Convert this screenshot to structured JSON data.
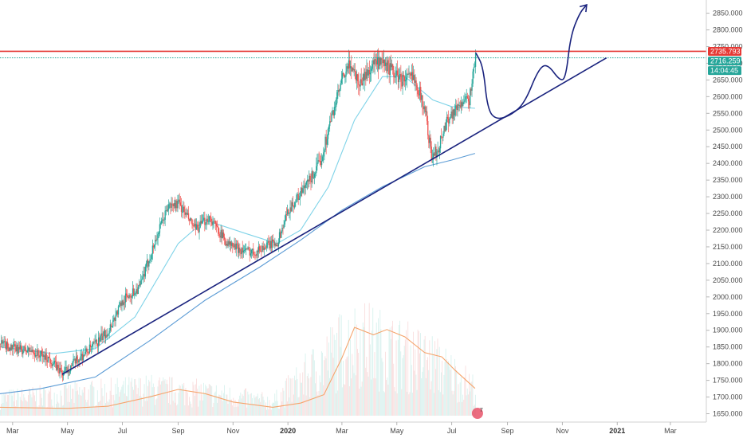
{
  "chart_data": {
    "type": "candlestick",
    "y_axis": {
      "position": "right",
      "range": [
        1625,
        2880
      ],
      "ticks": [
        "1650.000",
        "1700.000",
        "1750.000",
        "1800.000",
        "1850.000",
        "1900.000",
        "1950.000",
        "2000.000",
        "2050.000",
        "2100.000",
        "2150.000",
        "2200.000",
        "2250.000",
        "2300.000",
        "2350.000",
        "2400.000",
        "2450.000",
        "2500.000",
        "2550.000",
        "2600.000",
        "2650.000",
        "2700.000",
        "2750.000",
        "2800.000",
        "2850.000"
      ]
    },
    "x_axis": {
      "range": [
        "2019-02-15",
        "2021-04-10"
      ],
      "ticks": [
        {
          "date": "2019-03-01",
          "label": "Mar",
          "bold": false
        },
        {
          "date": "2019-05-01",
          "label": "May",
          "bold": false
        },
        {
          "date": "2019-07-01",
          "label": "Jul",
          "bold": false
        },
        {
          "date": "2019-09-01",
          "label": "Sep",
          "bold": false
        },
        {
          "date": "2019-11-01",
          "label": "Nov",
          "bold": false
        },
        {
          "date": "2020-01-01",
          "label": "2020",
          "bold": true
        },
        {
          "date": "2020-03-01",
          "label": "Mar",
          "bold": false
        },
        {
          "date": "2020-05-01",
          "label": "May",
          "bold": false
        },
        {
          "date": "2020-07-01",
          "label": "Jul",
          "bold": false
        },
        {
          "date": "2020-09-01",
          "label": "Sep",
          "bold": false
        },
        {
          "date": "2020-11-01",
          "label": "Nov",
          "bold": false
        },
        {
          "date": "2021-01-01",
          "label": "2021",
          "bold": true
        },
        {
          "date": "2021-03-01",
          "label": "Mar",
          "bold": false
        }
      ]
    },
    "price_path": [
      [
        "2019-02-15",
        1860
      ],
      [
        "2019-03-01",
        1845
      ],
      [
        "2019-03-20",
        1838
      ],
      [
        "2019-04-10",
        1815
      ],
      [
        "2019-04-25",
        1770
      ],
      [
        "2019-05-15",
        1820
      ],
      [
        "2019-06-01",
        1860
      ],
      [
        "2019-06-15",
        1900
      ],
      [
        "2019-07-01",
        1990
      ],
      [
        "2019-07-20",
        2030
      ],
      [
        "2019-08-05",
        2160
      ],
      [
        "2019-08-20",
        2270
      ],
      [
        "2019-09-01",
        2280
      ],
      [
        "2019-09-20",
        2200
      ],
      [
        "2019-10-05",
        2240
      ],
      [
        "2019-10-25",
        2160
      ],
      [
        "2019-11-10",
        2140
      ],
      [
        "2019-11-25",
        2135
      ],
      [
        "2019-12-05",
        2150
      ],
      [
        "2019-12-20",
        2165
      ],
      [
        "2020-01-01",
        2260
      ],
      [
        "2020-01-20",
        2330
      ],
      [
        "2020-02-05",
        2400
      ],
      [
        "2020-02-20",
        2560
      ],
      [
        "2020-03-01",
        2650
      ],
      [
        "2020-03-10",
        2700
      ],
      [
        "2020-03-20",
        2640
      ],
      [
        "2020-04-05",
        2700
      ],
      [
        "2020-04-20",
        2690
      ],
      [
        "2020-05-05",
        2650
      ],
      [
        "2020-05-20",
        2660
      ],
      [
        "2020-06-01",
        2560
      ],
      [
        "2020-06-08",
        2420
      ],
      [
        "2020-06-15",
        2440
      ],
      [
        "2020-06-25",
        2530
      ],
      [
        "2020-07-10",
        2580
      ],
      [
        "2020-07-20",
        2590
      ],
      [
        "2020-07-27",
        2720
      ]
    ],
    "volatility": 14,
    "series": [
      {
        "name": "",
        "color": "#26a69a",
        "role": "candle-up"
      },
      {
        "name": "",
        "color": "#ef5350",
        "role": "candle-down"
      },
      {
        "name": "",
        "color": "#7fd3e8",
        "role": "fast-moving-average",
        "points": [
          [
            "2019-02-15",
            1850
          ],
          [
            "2019-04-15",
            1830
          ],
          [
            "2019-06-01",
            1845
          ],
          [
            "2019-07-15",
            1940
          ],
          [
            "2019-09-01",
            2160
          ],
          [
            "2019-10-01",
            2230
          ],
          [
            "2019-11-15",
            2190
          ],
          [
            "2019-12-20",
            2160
          ],
          [
            "2020-01-15",
            2200
          ],
          [
            "2020-02-15",
            2330
          ],
          [
            "2020-03-15",
            2530
          ],
          [
            "2020-04-15",
            2660
          ],
          [
            "2020-05-10",
            2660
          ],
          [
            "2020-06-10",
            2590
          ],
          [
            "2020-07-01",
            2570
          ],
          [
            "2020-07-27",
            2565
          ]
        ]
      },
      {
        "name": "",
        "color": "#5b9bd5",
        "role": "slow-moving-average",
        "points": [
          [
            "2019-02-15",
            1710
          ],
          [
            "2019-04-01",
            1725
          ],
          [
            "2019-06-01",
            1760
          ],
          [
            "2019-08-01",
            1870
          ],
          [
            "2019-10-01",
            1990
          ],
          [
            "2019-12-01",
            2090
          ],
          [
            "2020-01-15",
            2170
          ],
          [
            "2020-03-01",
            2260
          ],
          [
            "2020-04-15",
            2330
          ],
          [
            "2020-06-01",
            2390
          ],
          [
            "2020-07-01",
            2410
          ],
          [
            "2020-07-27",
            2430
          ]
        ]
      },
      {
        "name": "",
        "color": "#f5a46c",
        "role": "volume-moving-average",
        "points": [
          [
            "2019-02-15",
            0.08
          ],
          [
            "2019-05-01",
            0.07
          ],
          [
            "2019-06-15",
            0.09
          ],
          [
            "2019-08-01",
            0.18
          ],
          [
            "2019-09-01",
            0.25
          ],
          [
            "2019-10-01",
            0.21
          ],
          [
            "2019-11-01",
            0.13
          ],
          [
            "2019-12-15",
            0.08
          ],
          [
            "2020-01-15",
            0.12
          ],
          [
            "2020-02-10",
            0.2
          ],
          [
            "2020-03-01",
            0.55
          ],
          [
            "2020-03-15",
            0.84
          ],
          [
            "2020-04-05",
            0.77
          ],
          [
            "2020-04-20",
            0.82
          ],
          [
            "2020-05-10",
            0.75
          ],
          [
            "2020-06-01",
            0.6
          ],
          [
            "2020-06-20",
            0.56
          ],
          [
            "2020-07-05",
            0.43
          ],
          [
            "2020-07-27",
            0.26
          ]
        ]
      }
    ],
    "volume": {
      "range": [
        0,
        1
      ],
      "peaks": [
        [
          "2019-02-15",
          0.22
        ],
        [
          "2019-08-01",
          0.35
        ],
        [
          "2019-10-01",
          0.3
        ],
        [
          "2019-12-15",
          0.18
        ],
        [
          "2020-03-01",
          0.9
        ],
        [
          "2020-03-20",
          1.0
        ],
        [
          "2020-04-25",
          0.85
        ],
        [
          "2020-06-10",
          0.7
        ],
        [
          "2020-07-27",
          0.35
        ]
      ]
    },
    "horizontal_lines": [
      {
        "value": 2735.793,
        "label": "2735.793",
        "color": "#e53935",
        "style": "solid"
      },
      {
        "value": 2716.259,
        "label": "2716.259",
        "color": "#26a69a",
        "style": "dotted"
      }
    ],
    "countdown": {
      "label": "14:04:45",
      "color": "#26a69a"
    },
    "trendline": {
      "color": "#1a237e",
      "from": [
        "2019-04-25",
        1768
      ],
      "to": [
        "2020-12-20",
        2716
      ]
    },
    "drawing": {
      "color": "#1a237e",
      "points": [
        [
          "2020-07-28",
          2730
        ],
        [
          "2020-08-05",
          2690
        ],
        [
          "2020-08-10",
          2560
        ],
        [
          "2020-08-20",
          2530
        ],
        [
          "2020-09-05",
          2545
        ],
        [
          "2020-09-20",
          2580
        ],
        [
          "2020-10-05",
          2680
        ],
        [
          "2020-10-15",
          2700
        ],
        [
          "2020-10-30",
          2645
        ],
        [
          "2020-11-05",
          2660
        ],
        [
          "2020-11-10",
          2780
        ],
        [
          "2020-11-20",
          2850
        ],
        [
          "2020-11-28",
          2875
        ]
      ]
    },
    "watermark_badge": {
      "text": "7",
      "color": "#e8546a"
    }
  }
}
